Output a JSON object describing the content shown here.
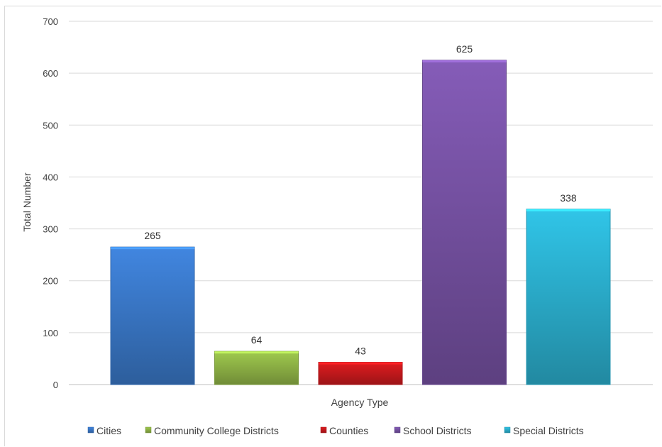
{
  "chart_data": {
    "type": "bar",
    "title": "",
    "xlabel": "Agency Type",
    "ylabel": "Total Number",
    "ylim": [
      0,
      700
    ],
    "yticks": [
      0,
      100,
      200,
      300,
      400,
      500,
      600,
      700
    ],
    "grid": true,
    "legend_position": "bottom",
    "categories": [
      "Cities",
      "Community College Districts",
      "Counties",
      "School Districts",
      "Special Districts"
    ],
    "values": [
      265,
      64,
      43,
      625,
      338
    ],
    "data_labels": [
      "265",
      "64",
      "43",
      "625",
      "338"
    ],
    "colors": [
      "#3a78c8",
      "#8fb446",
      "#c8191d",
      "#7752a4",
      "#2bb0cf"
    ]
  }
}
